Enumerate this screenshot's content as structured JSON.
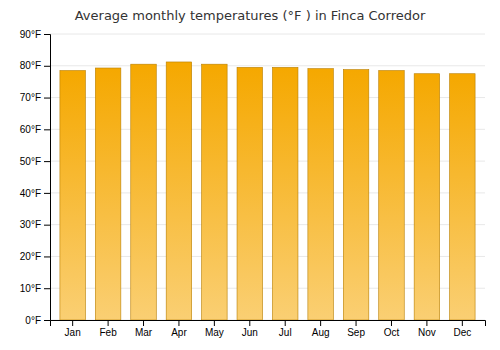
{
  "chart_data": {
    "type": "bar",
    "title": "Average monthly temperatures (°F ) in Finca Corredor",
    "categories": [
      "Jan",
      "Feb",
      "Mar",
      "Apr",
      "May",
      "Jun",
      "Jul",
      "Aug",
      "Sep",
      "Oct",
      "Nov",
      "Dec"
    ],
    "values": [
      78.5,
      79.3,
      80.5,
      81.2,
      80.5,
      79.5,
      79.5,
      79.1,
      78.8,
      78.5,
      77.5,
      77.5
    ],
    "color": "#F5A800",
    "ylim": [
      0,
      90
    ],
    "yticks": [
      {
        "value": 0,
        "label": "0°F"
      },
      {
        "value": 10,
        "label": "10°F"
      },
      {
        "value": 20,
        "label": "20°F"
      },
      {
        "value": 30,
        "label": "30°F"
      },
      {
        "value": 40,
        "label": "40°F"
      },
      {
        "value": 50,
        "label": "50°F"
      },
      {
        "value": 60,
        "label": "60°F"
      },
      {
        "value": 70,
        "label": "70°F"
      },
      {
        "value": 80,
        "label": "80°F"
      },
      {
        "value": 90,
        "label": "90°F"
      }
    ],
    "grid": true
  }
}
